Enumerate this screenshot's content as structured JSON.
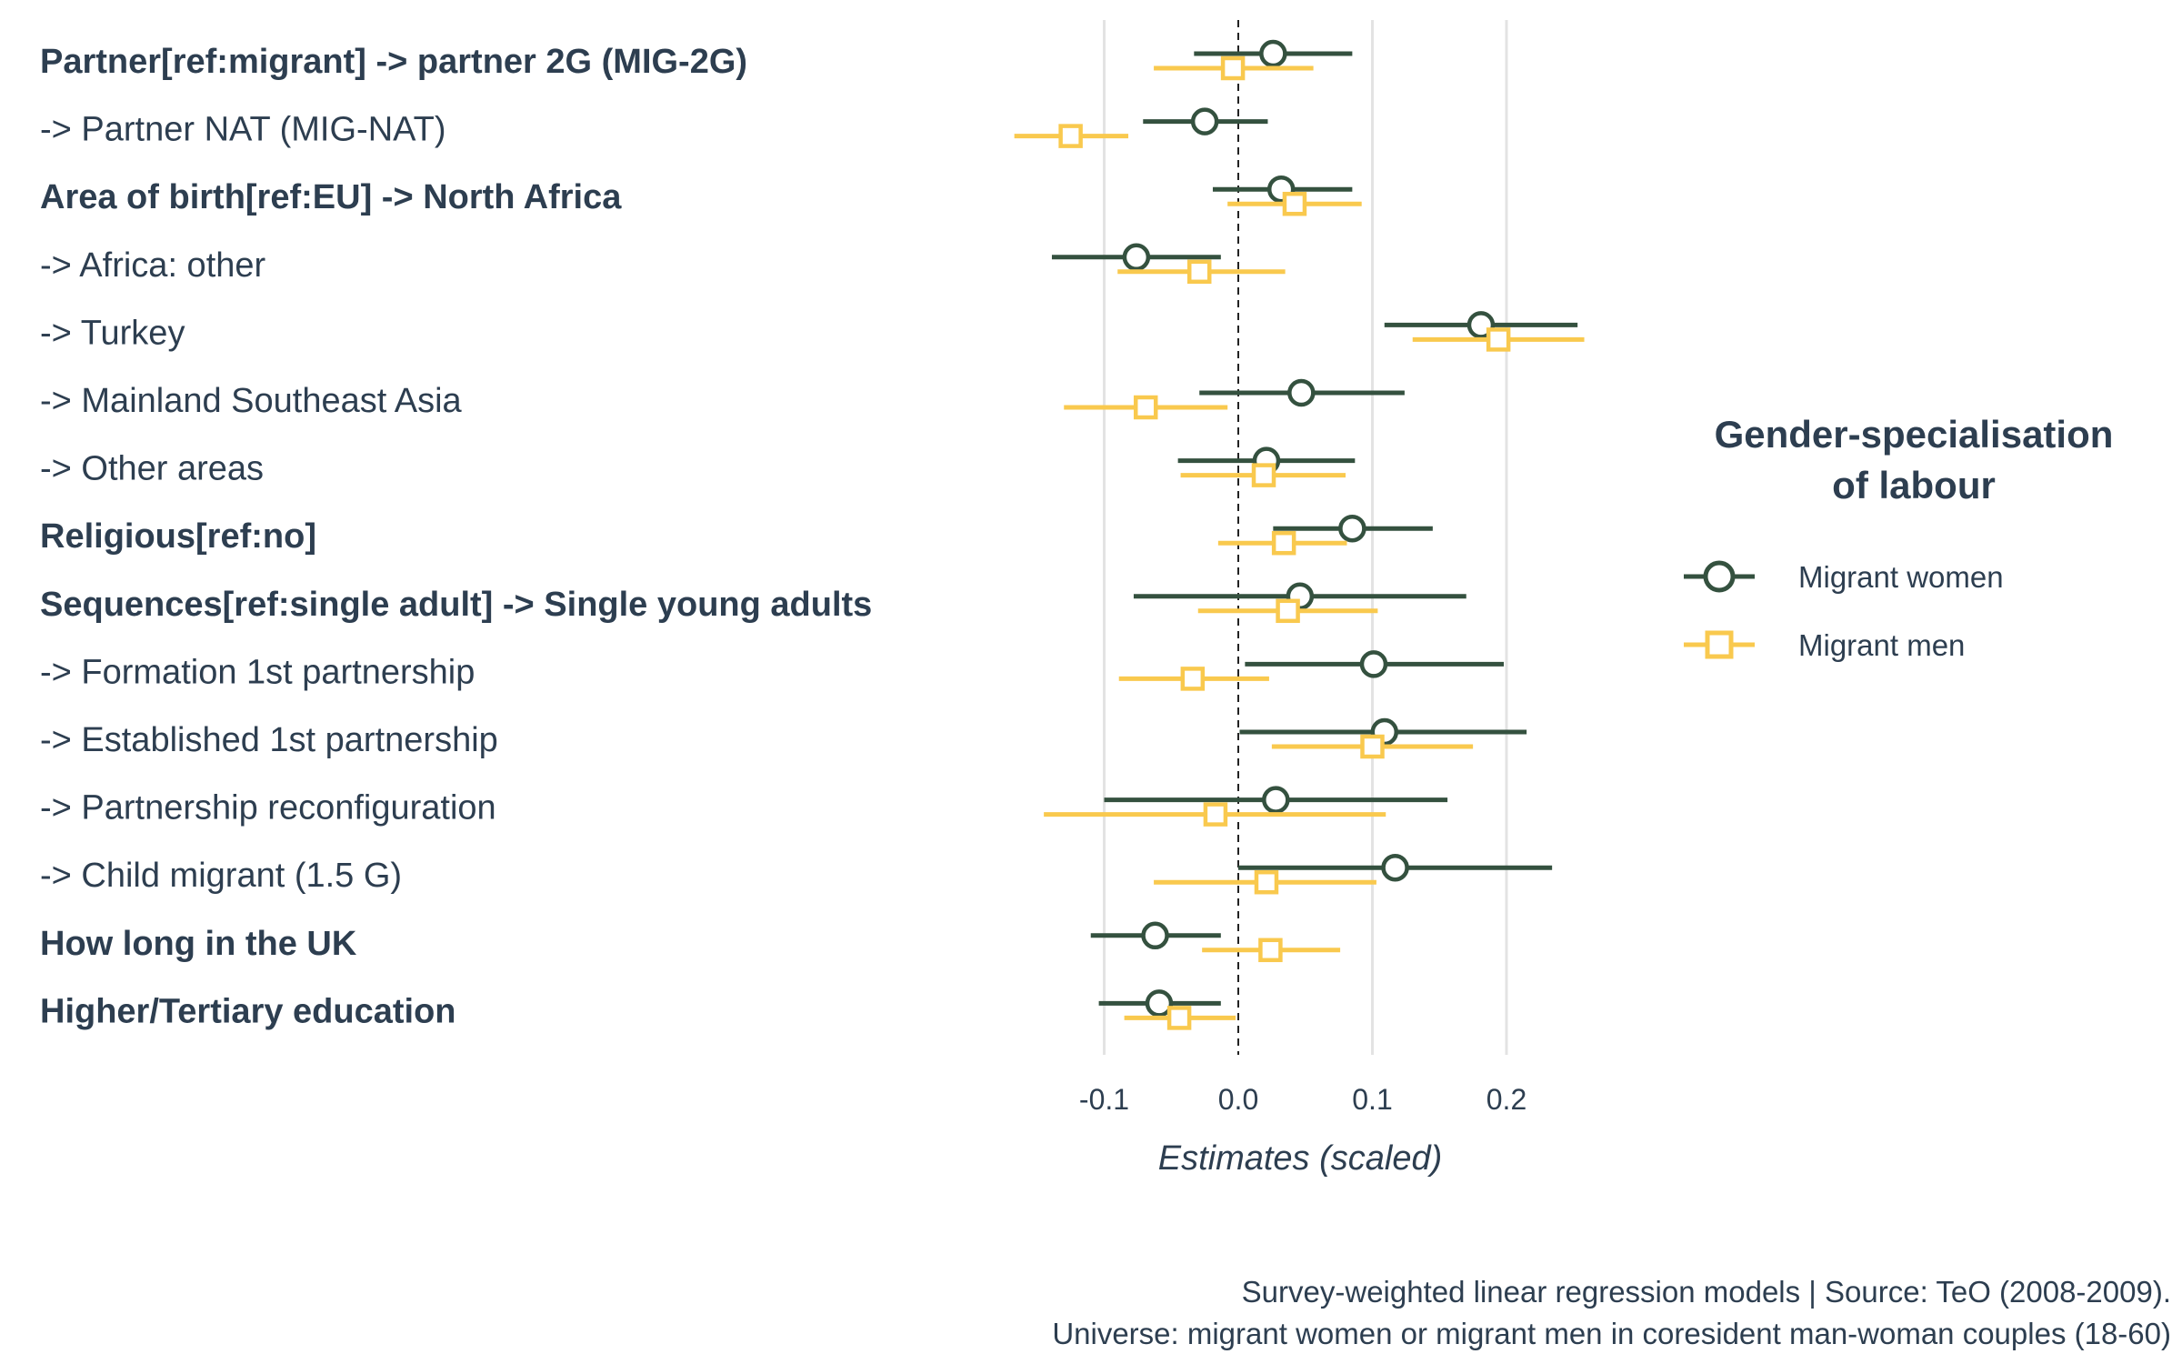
{
  "chart_data": {
    "type": "scatter",
    "subtype": "coefficient-plot",
    "xlabel": "Estimates (scaled)",
    "xlim": [
      -0.17,
      0.26
    ],
    "xticks": [
      -0.1,
      0.0,
      0.1,
      0.2
    ],
    "xtick_labels": [
      "-0.1",
      "0.0",
      "0.1",
      "0.2"
    ],
    "reference_line": 0,
    "grid": "vertical major",
    "terms": [
      {
        "label": "Partner[ref:migrant] -> partner 2G (MIG-2G)",
        "bold": true
      },
      {
        "label": "-> Partner NAT (MIG-NAT)",
        "bold": false
      },
      {
        "label": "Area of birth[ref:EU] -> North Africa",
        "bold": true
      },
      {
        "label": "-> Africa: other",
        "bold": false
      },
      {
        "label": "-> Turkey",
        "bold": false
      },
      {
        "label": "-> Mainland Southeast Asia",
        "bold": false
      },
      {
        "label": "-> Other areas",
        "bold": false
      },
      {
        "label": "Religious[ref:no]",
        "bold": true
      },
      {
        "label": "Sequences[ref:single adult] -> Single young adults",
        "bold": true
      },
      {
        "label": "-> Formation 1st partnership",
        "bold": false
      },
      {
        "label": "-> Established 1st partnership",
        "bold": false
      },
      {
        "label": "-> Partnership reconfiguration",
        "bold": false
      },
      {
        "label": "-> Child migrant (1.5 G)",
        "bold": false
      },
      {
        "label": "How long in the UK",
        "bold": true
      },
      {
        "label": "Higher/Tertiary education",
        "bold": true
      }
    ],
    "series": [
      {
        "name": "Migrant women",
        "color": "#34513f",
        "marker": "circle",
        "estimate": [
          0.026,
          -0.025,
          0.032,
          -0.076,
          0.181,
          0.047,
          0.021,
          0.085,
          0.046,
          0.101,
          0.109,
          0.028,
          0.117,
          -0.062,
          -0.059
        ],
        "lower": [
          -0.033,
          -0.071,
          -0.019,
          -0.139,
          0.109,
          -0.029,
          -0.045,
          0.026,
          -0.078,
          0.005,
          0.001,
          -0.1,
          0.0,
          -0.11,
          -0.104
        ],
        "upper": [
          0.085,
          0.022,
          0.085,
          -0.013,
          0.253,
          0.124,
          0.087,
          0.145,
          0.17,
          0.198,
          0.215,
          0.156,
          0.234,
          -0.013,
          -0.013
        ]
      },
      {
        "name": "Migrant men",
        "color": "#f9c94e",
        "marker": "square",
        "estimate": [
          -0.004,
          -0.125,
          0.042,
          -0.029,
          0.194,
          -0.069,
          0.019,
          0.034,
          0.037,
          -0.034,
          0.1,
          -0.017,
          0.021,
          0.024,
          -0.044
        ],
        "lower": [
          -0.063,
          -0.167,
          -0.008,
          -0.09,
          0.13,
          -0.13,
          -0.043,
          -0.015,
          -0.03,
          -0.089,
          0.025,
          -0.145,
          -0.063,
          -0.027,
          -0.085
        ],
        "upper": [
          0.056,
          -0.082,
          0.092,
          0.035,
          0.258,
          -0.008,
          0.08,
          0.081,
          0.104,
          0.023,
          0.175,
          0.11,
          0.103,
          0.076,
          -0.002
        ]
      }
    ],
    "legend": {
      "title_line1": "Gender-specialisation",
      "title_line2": "of labour",
      "placement": "right"
    }
  },
  "caption": {
    "line1": "Survey-weighted linear regression models | Source: TeO (2008-2009).",
    "line2": "Universe: migrant women or migrant men in coresident man-woman couples (18-60)"
  }
}
